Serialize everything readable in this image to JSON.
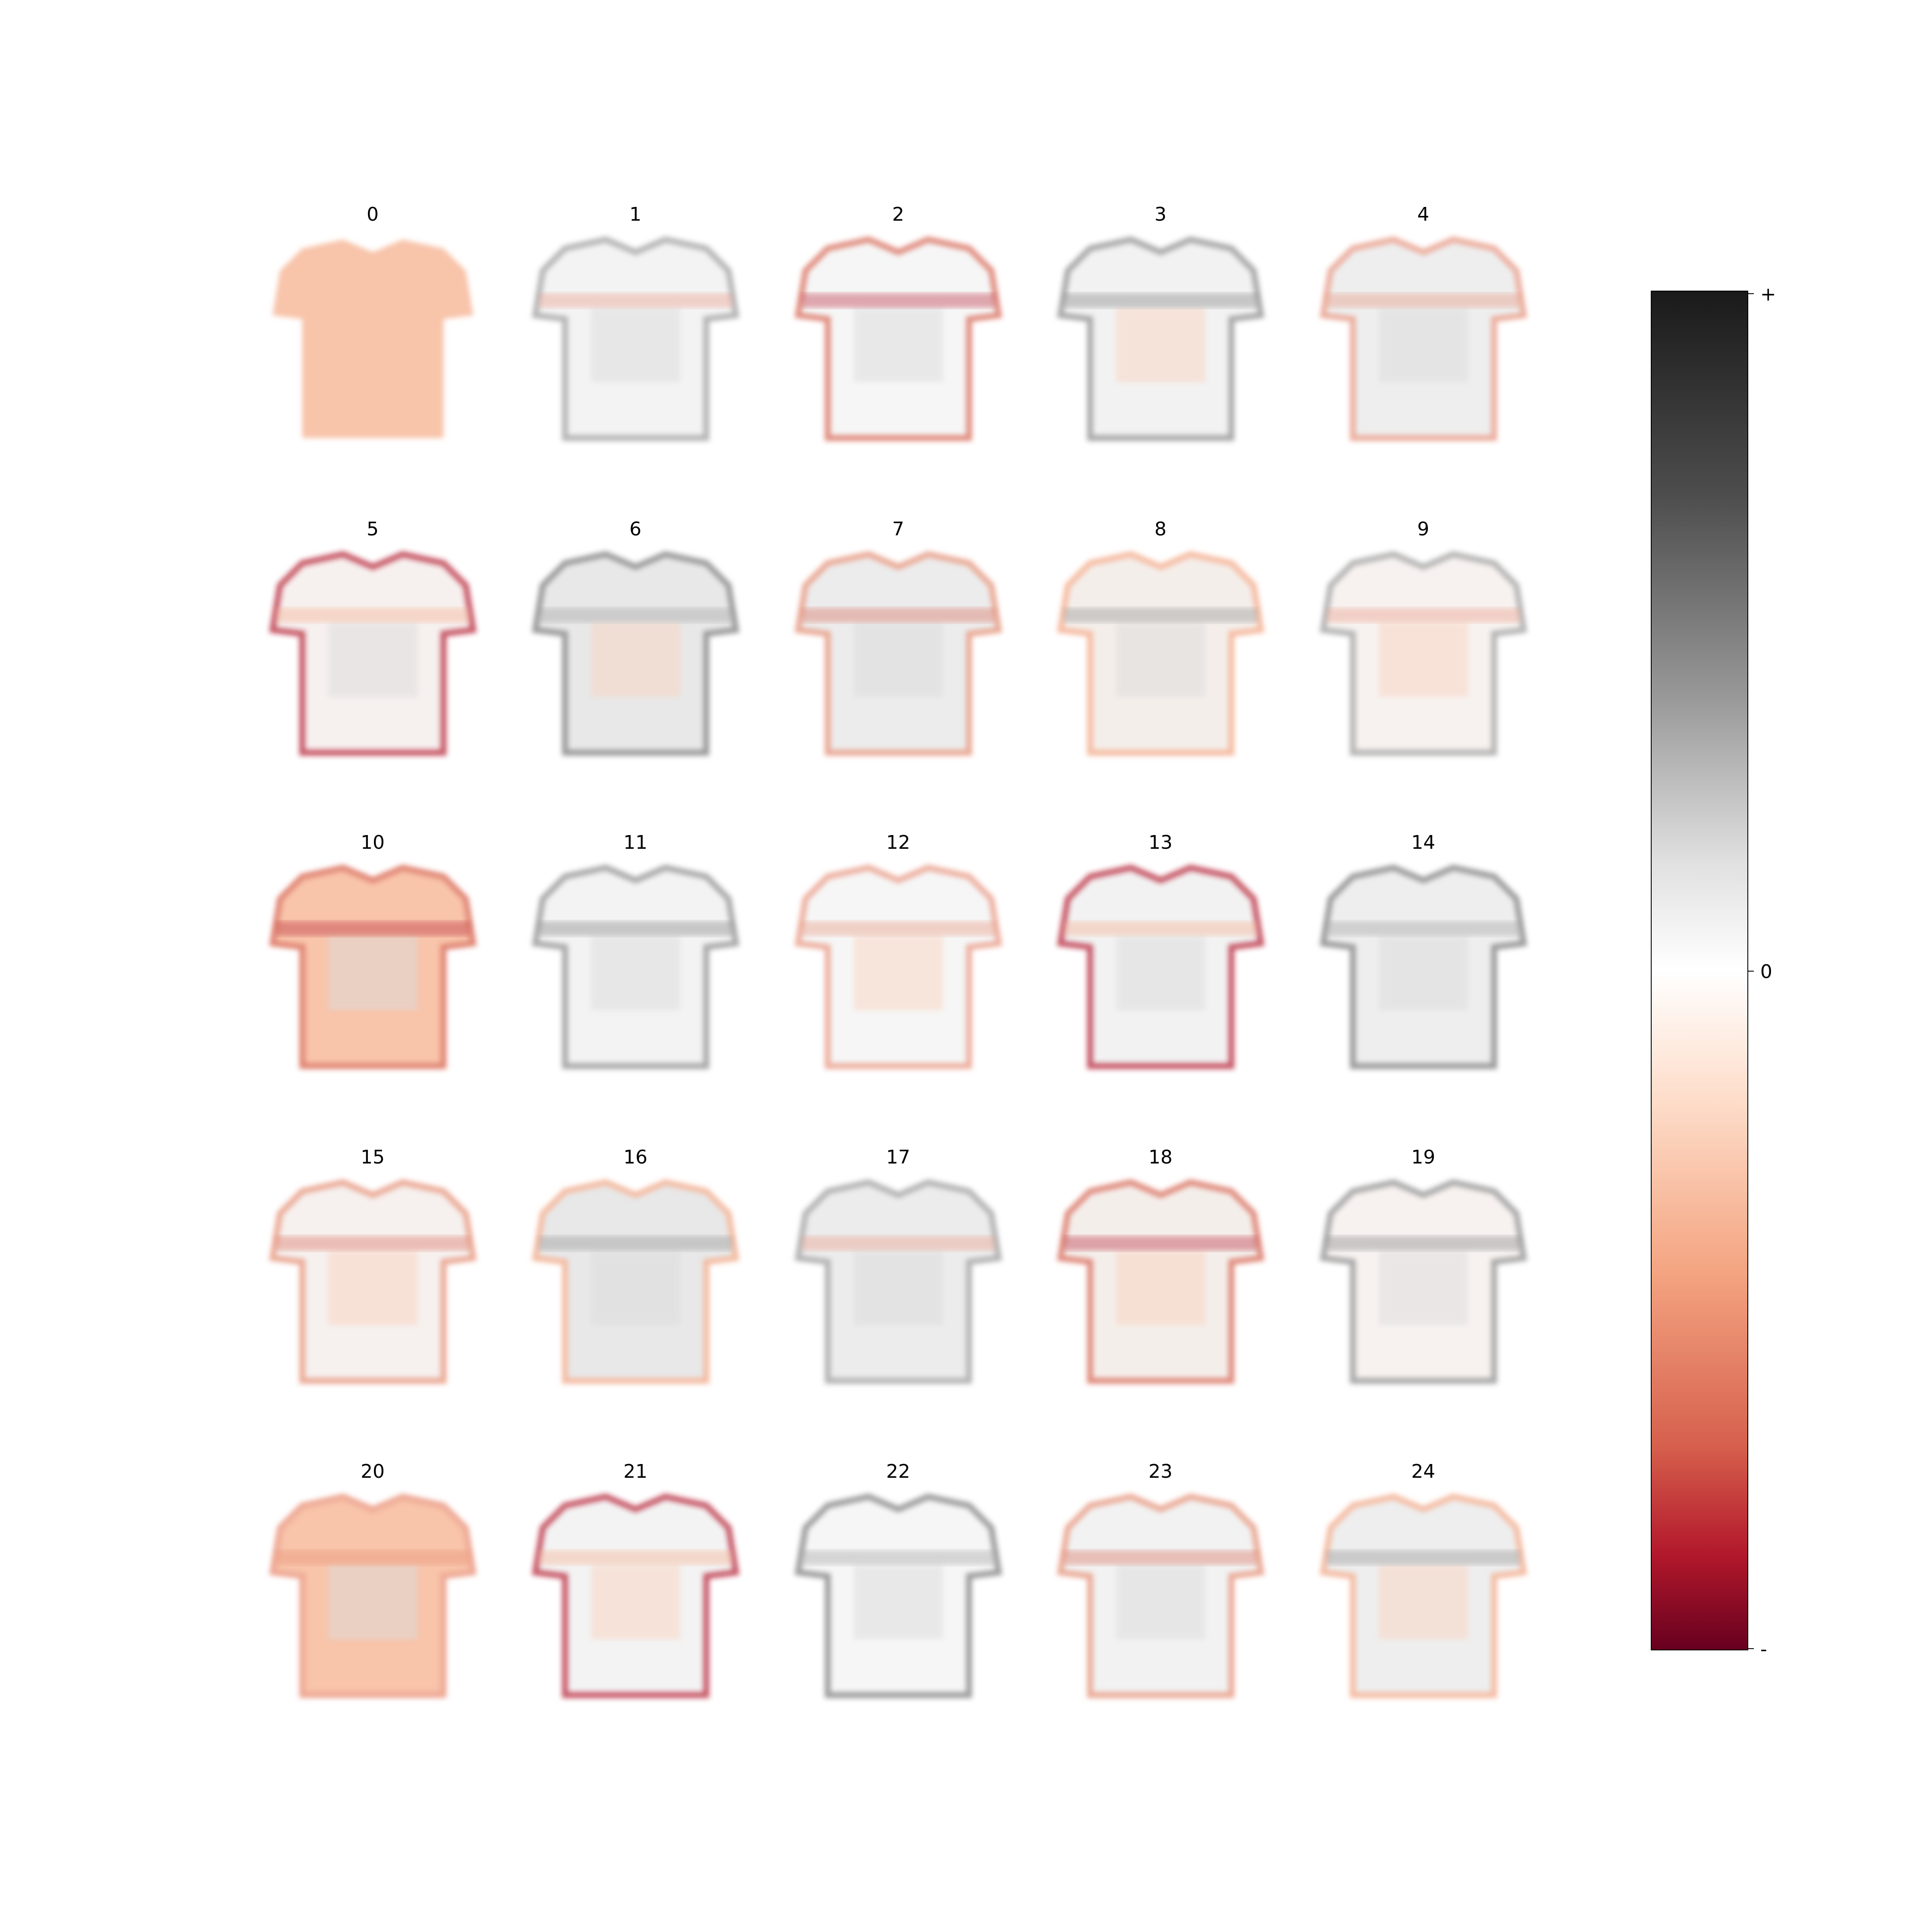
{
  "panels": [
    "0",
    "1",
    "2",
    "3",
    "4",
    "5",
    "6",
    "7",
    "8",
    "9",
    "10",
    "11",
    "12",
    "13",
    "14",
    "15",
    "16",
    "17",
    "18",
    "19",
    "20",
    "21",
    "22",
    "23",
    "24"
  ],
  "colorbar": {
    "ticks": [
      "+",
      "0",
      "-"
    ]
  }
}
